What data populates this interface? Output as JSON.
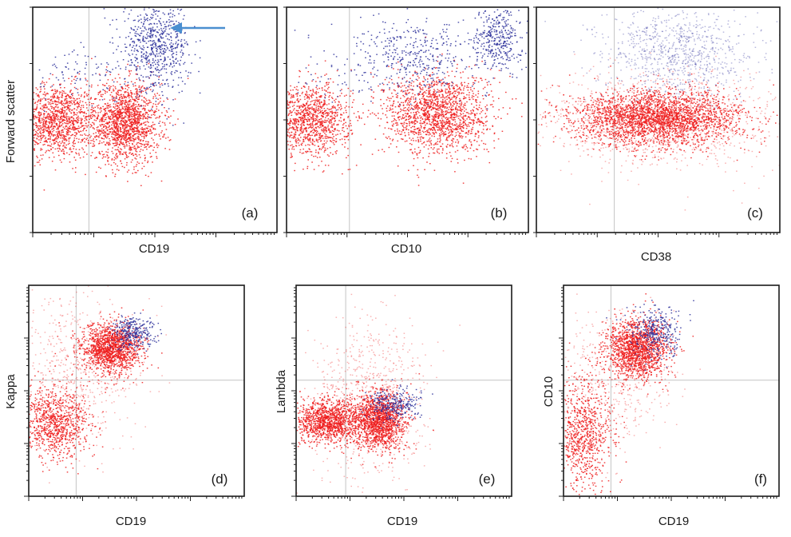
{
  "figure": {
    "arrow_color": "#4a8fd0"
  },
  "colors": {
    "population_a": "#ee1c1c",
    "population_b": "#2b2f9a",
    "border": "#1a1a1a",
    "quadrant_line": "#c4c4c4"
  },
  "chart_data": [
    {
      "type": "scatter",
      "panel_label": "(a)",
      "xlabel": "CD19",
      "ylabel": "Forward scatter",
      "x_scale": "log",
      "series": [
        {
          "color": "#ee1c1c",
          "clusters": [
            {
              "cx": 0.09,
              "cy": 0.5,
              "sx": 0.09,
              "sy": 0.08,
              "n": 1300
            },
            {
              "cx": 0.38,
              "cy": 0.49,
              "sx": 0.07,
              "sy": 0.09,
              "n": 1500
            }
          ]
        },
        {
          "color": "#2b2f9a",
          "clusters": [
            {
              "cx": 0.5,
              "cy": 0.83,
              "sx": 0.07,
              "sy": 0.1,
              "n": 700
            },
            {
              "cx": 0.2,
              "cy": 0.7,
              "sx": 0.12,
              "sy": 0.06,
              "n": 90
            }
          ]
        }
      ]
    },
    {
      "type": "scatter",
      "panel_label": "(b)",
      "xlabel": "CD10",
      "ylabel": "",
      "x_scale": "log",
      "series": [
        {
          "color": "#ee1c1c",
          "clusters": [
            {
              "cx": 0.1,
              "cy": 0.5,
              "sx": 0.08,
              "sy": 0.08,
              "n": 1100
            },
            {
              "cx": 0.62,
              "cy": 0.53,
              "sx": 0.11,
              "sy": 0.09,
              "n": 1600
            }
          ]
        },
        {
          "color": "#2b2f9a",
          "clusters": [
            {
              "cx": 0.53,
              "cy": 0.78,
              "sx": 0.11,
              "sy": 0.08,
              "n": 380
            },
            {
              "cx": 0.87,
              "cy": 0.87,
              "sx": 0.05,
              "sy": 0.08,
              "n": 380
            },
            {
              "cx": 0.25,
              "cy": 0.72,
              "sx": 0.14,
              "sy": 0.08,
              "n": 70
            }
          ]
        }
      ]
    },
    {
      "type": "scatter",
      "panel_label": "(c)",
      "xlabel": "CD38",
      "ylabel": "",
      "x_scale": "log",
      "series": [
        {
          "color": "#ee1c1c",
          "clusters": [
            {
              "cx": 0.5,
              "cy": 0.51,
              "sx": 0.17,
              "sy": 0.06,
              "n": 2600
            },
            {
              "cx": 0.5,
              "cy": 0.5,
              "sx": 0.26,
              "sy": 0.1,
              "n": 1200,
              "light": true
            }
          ]
        },
        {
          "color": "#2b2f9a",
          "clusters": [
            {
              "cx": 0.58,
              "cy": 0.8,
              "sx": 0.15,
              "sy": 0.1,
              "n": 900,
              "light": true
            }
          ]
        }
      ]
    },
    {
      "type": "scatter",
      "panel_label": "(d)",
      "xlabel": "CD19",
      "ylabel": "Kappa",
      "x_scale": "log",
      "series": [
        {
          "color": "#ee1c1c",
          "clusters": [
            {
              "cx": 0.38,
              "cy": 0.7,
              "sx": 0.07,
              "sy": 0.06,
              "n": 1400
            },
            {
              "cx": 0.12,
              "cy": 0.35,
              "sx": 0.08,
              "sy": 0.08,
              "n": 900
            },
            {
              "cx": 0.22,
              "cy": 0.6,
              "sx": 0.15,
              "sy": 0.18,
              "n": 600,
              "light": true
            }
          ]
        },
        {
          "color": "#2b2f9a",
          "clusters": [
            {
              "cx": 0.48,
              "cy": 0.78,
              "sx": 0.05,
              "sy": 0.04,
              "n": 300
            }
          ]
        }
      ]
    },
    {
      "type": "scatter",
      "panel_label": "(e)",
      "xlabel": "CD19",
      "ylabel": "Lambda",
      "x_scale": "log",
      "series": [
        {
          "color": "#ee1c1c",
          "clusters": [
            {
              "cx": 0.15,
              "cy": 0.36,
              "sx": 0.08,
              "sy": 0.05,
              "n": 1200
            },
            {
              "cx": 0.38,
              "cy": 0.36,
              "sx": 0.06,
              "sy": 0.07,
              "n": 1400
            },
            {
              "cx": 0.33,
              "cy": 0.45,
              "sx": 0.13,
              "sy": 0.2,
              "n": 700,
              "light": true
            }
          ]
        },
        {
          "color": "#2b2f9a",
          "clusters": [
            {
              "cx": 0.45,
              "cy": 0.43,
              "sx": 0.06,
              "sy": 0.04,
              "n": 280
            }
          ]
        }
      ]
    },
    {
      "type": "scatter",
      "panel_label": "(f)",
      "xlabel": "CD19",
      "ylabel": "CD10",
      "x_scale": "log",
      "series": [
        {
          "color": "#ee1c1c",
          "clusters": [
            {
              "cx": 0.34,
              "cy": 0.7,
              "sx": 0.07,
              "sy": 0.07,
              "n": 1500
            },
            {
              "cx": 0.09,
              "cy": 0.3,
              "sx": 0.07,
              "sy": 0.13,
              "n": 800
            },
            {
              "cx": 0.22,
              "cy": 0.58,
              "sx": 0.13,
              "sy": 0.16,
              "n": 500,
              "light": true
            }
          ]
        },
        {
          "color": "#2b2f9a",
          "clusters": [
            {
              "cx": 0.43,
              "cy": 0.78,
              "sx": 0.06,
              "sy": 0.06,
              "n": 320
            }
          ]
        }
      ]
    }
  ]
}
